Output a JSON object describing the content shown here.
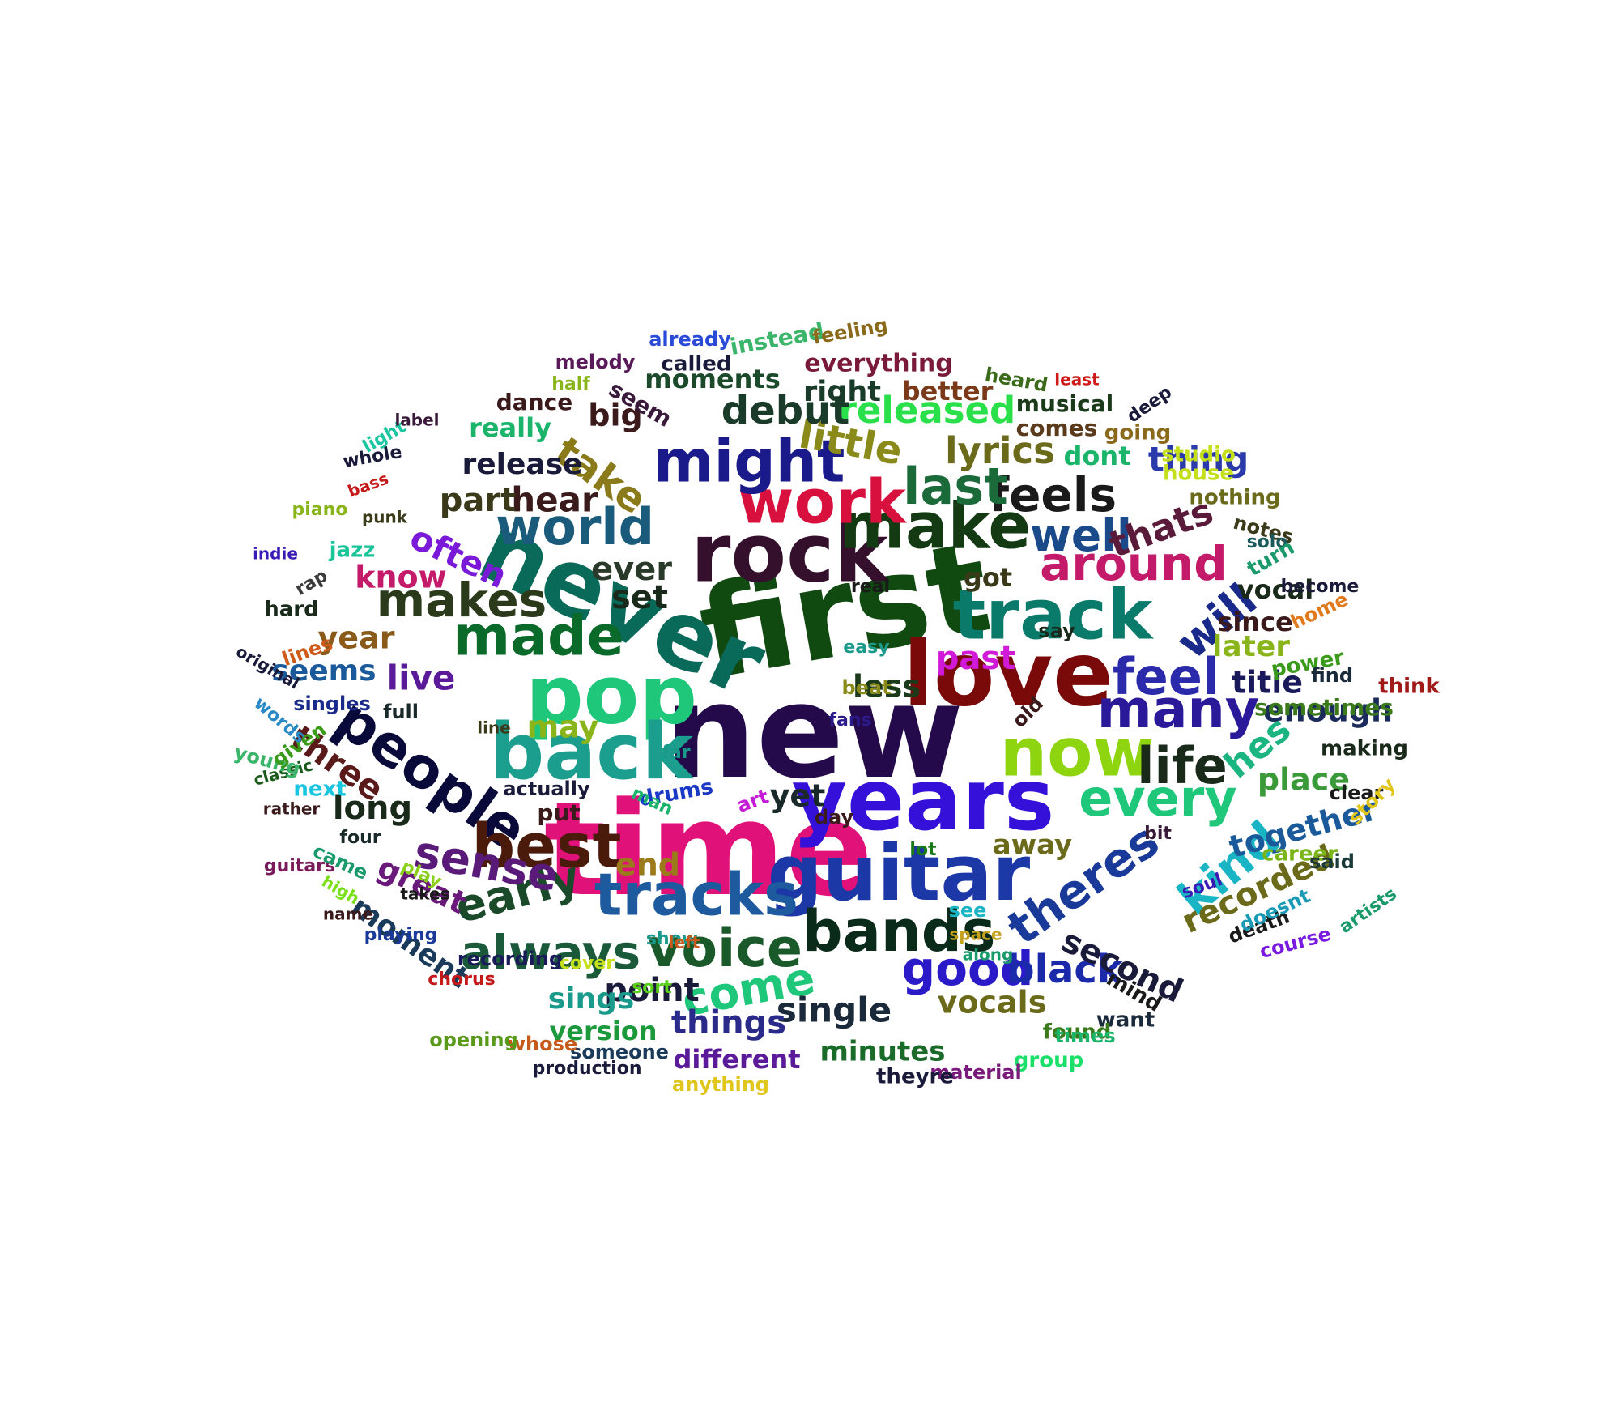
{
  "word_cloud": {
    "words": [
      {
        "text": "new",
        "color": "#240a4a",
        "rotate": 0
      },
      {
        "text": "time",
        "color": "#e1117a",
        "rotate": 0
      },
      {
        "text": "first",
        "color": "#114a10",
        "rotate": -10
      },
      {
        "text": "never",
        "color": "#0a6a5a",
        "rotate": 25
      },
      {
        "text": "years",
        "color": "#3410d8",
        "rotate": 0
      },
      {
        "text": "love",
        "color": "#7a0a0a",
        "rotate": 0
      },
      {
        "text": "rock",
        "color": "#34102c",
        "rotate": 0
      },
      {
        "text": "pop",
        "color": "#1ec77a",
        "rotate": 0
      },
      {
        "text": "back",
        "color": "#1b9e8e",
        "rotate": 0
      },
      {
        "text": "guitar",
        "color": "#1c37a6",
        "rotate": 0
      },
      {
        "text": "make",
        "color": "#143a14",
        "rotate": 0
      },
      {
        "text": "track",
        "color": "#0a7a6a",
        "rotate": 0
      },
      {
        "text": "now",
        "color": "#8ed50f",
        "rotate": 0
      },
      {
        "text": "people",
        "color": "#0a0a3a",
        "rotate": 35
      },
      {
        "text": "work",
        "color": "#d8103e",
        "rotate": 0
      },
      {
        "text": "might",
        "color": "#1a1a8a",
        "rotate": 0
      },
      {
        "text": "world",
        "color": "#1a5a7a",
        "rotate": 0
      },
      {
        "text": "made",
        "color": "#0a6a2a",
        "rotate": 0
      },
      {
        "text": "many",
        "color": "#2a1a9a",
        "rotate": 0
      },
      {
        "text": "bands",
        "color": "#0a2a1a",
        "rotate": 0
      },
      {
        "text": "tracks",
        "color": "#1d5a9e",
        "rotate": 0
      },
      {
        "text": "best",
        "color": "#4a1a0a",
        "rotate": 0
      },
      {
        "text": "voice",
        "color": "#1a5a2a",
        "rotate": 0
      },
      {
        "text": "around",
        "color": "#c41a6a",
        "rotate": 0
      },
      {
        "text": "feels",
        "color": "#1a1a1a",
        "rotate": 0
      },
      {
        "text": "last",
        "color": "#1a6a3a",
        "rotate": 0
      },
      {
        "text": "feel",
        "color": "#2a2aaa",
        "rotate": 0
      },
      {
        "text": "every",
        "color": "#1ec77a",
        "rotate": 0
      },
      {
        "text": "theres",
        "color": "#1a3a9a",
        "rotate": -35
      },
      {
        "text": "early",
        "color": "#1a4a2a",
        "rotate": -15
      },
      {
        "text": "good",
        "color": "#2a1ac8",
        "rotate": 0
      },
      {
        "text": "will",
        "color": "#1a2a8a",
        "rotate": -40
      },
      {
        "text": "kind",
        "color": "#1ab5c5",
        "rotate": -40
      },
      {
        "text": "sense",
        "color": "#5a1a7a",
        "rotate": 10
      },
      {
        "text": "makes",
        "color": "#2a3a1a",
        "rotate": 0
      },
      {
        "text": "life",
        "color": "#1a2a1a",
        "rotate": 0
      },
      {
        "text": "well",
        "color": "#1a4a8a",
        "rotate": 0
      },
      {
        "text": "always",
        "color": "#1a5a3a",
        "rotate": 0
      },
      {
        "text": "come",
        "color": "#1ec77a",
        "rotate": -10
      },
      {
        "text": "black",
        "color": "#1a2aaa",
        "rotate": 0
      },
      {
        "text": "take",
        "color": "#8a7a1a",
        "rotate": 35
      },
      {
        "text": "little",
        "color": "#8a8a1a",
        "rotate": 10
      },
      {
        "text": "lyrics",
        "color": "#6a6a1a",
        "rotate": 0
      },
      {
        "text": "released",
        "color": "#2ae04a",
        "rotate": 0
      },
      {
        "text": "debut",
        "color": "#1a3a2a",
        "rotate": 0
      },
      {
        "text": "thing",
        "color": "#2a3aaa",
        "rotate": 0
      },
      {
        "text": "thats",
        "color": "#5a1a3a",
        "rotate": -20
      },
      {
        "text": "often",
        "color": "#7a1ad8",
        "rotate": 25
      },
      {
        "text": "know",
        "color": "#c41a6a",
        "rotate": 0
      },
      {
        "text": "hear",
        "color": "#3a1a1a",
        "rotate": 0
      },
      {
        "text": "part",
        "color": "#3a3a1a",
        "rotate": 0
      },
      {
        "text": "ever",
        "color": "#2a3a2a",
        "rotate": 0
      },
      {
        "text": "set",
        "color": "#1a2a1a",
        "rotate": 0
      },
      {
        "text": "live",
        "color": "#5a1a9a",
        "rotate": 0
      },
      {
        "text": "year",
        "color": "#8a5a1a",
        "rotate": 0
      },
      {
        "text": "seems",
        "color": "#1a5a9a",
        "rotate": 0
      },
      {
        "text": "past",
        "color": "#d01ad8",
        "rotate": 0
      },
      {
        "text": "less",
        "color": "#1a3a1a",
        "rotate": 0
      },
      {
        "text": "title",
        "color": "#1a1a5a",
        "rotate": 0
      },
      {
        "text": "enough",
        "color": "#1a2a5a",
        "rotate": 0
      },
      {
        "text": "hes",
        "color": "#1ab580",
        "rotate": -40
      },
      {
        "text": "place",
        "color": "#3a9a3a",
        "rotate": 0
      },
      {
        "text": "together",
        "color": "#1a5a9a",
        "rotate": -15
      },
      {
        "text": "recorded",
        "color": "#6a6a1a",
        "rotate": -25
      },
      {
        "text": "second",
        "color": "#1a1a3a",
        "rotate": 25
      },
      {
        "text": "single",
        "color": "#1a2a3a",
        "rotate": 0
      },
      {
        "text": "things",
        "color": "#2a2a8a",
        "rotate": 0
      },
      {
        "text": "point",
        "color": "#1a1a3a",
        "rotate": 0
      },
      {
        "text": "vocals",
        "color": "#6a6a1a",
        "rotate": 0
      },
      {
        "text": "three",
        "color": "#5a1a1a",
        "rotate": 35
      },
      {
        "text": "long",
        "color": "#1a2a1a",
        "rotate": 0
      },
      {
        "text": "great",
        "color": "#6a1a7a",
        "rotate": 25
      },
      {
        "text": "moment",
        "color": "#1a3a5a",
        "rotate": 35
      },
      {
        "text": "end",
        "color": "#9a7a1a",
        "rotate": 0
      },
      {
        "text": "yet",
        "color": "#1a2a2a",
        "rotate": 0
      },
      {
        "text": "may",
        "color": "#8ab51a",
        "rotate": 0
      },
      {
        "text": "later",
        "color": "#8ab51a",
        "rotate": 0
      },
      {
        "text": "since",
        "color": "#3a1a1a",
        "rotate": 0
      },
      {
        "text": "vocal",
        "color": "#1a2a1a",
        "rotate": 0
      },
      {
        "text": "got",
        "color": "#3a3a1a",
        "rotate": 0
      },
      {
        "text": "away",
        "color": "#6a6a1a",
        "rotate": 0
      },
      {
        "text": "sings",
        "color": "#1a9a8a",
        "rotate": 0
      },
      {
        "text": "version",
        "color": "#1a9a3a",
        "rotate": 0
      },
      {
        "text": "minutes",
        "color": "#1a6a2a",
        "rotate": 0
      },
      {
        "text": "different",
        "color": "#5a1a9a",
        "rotate": 0
      },
      {
        "text": "big",
        "color": "#3a1a1a",
        "rotate": 0
      },
      {
        "text": "release",
        "color": "#1a1a3a",
        "rotate": 0
      },
      {
        "text": "really",
        "color": "#1ab56a",
        "rotate": 0
      },
      {
        "text": "right",
        "color": "#1a3a2a",
        "rotate": 0
      },
      {
        "text": "better",
        "color": "#7a3a1a",
        "rotate": 0
      },
      {
        "text": "everything",
        "color": "#7a1a3a",
        "rotate": 0
      },
      {
        "text": "moments",
        "color": "#1a4a2a",
        "rotate": 0
      },
      {
        "text": "seem",
        "color": "#3a1a3a",
        "rotate": 30
      },
      {
        "text": "dance",
        "color": "#3a1a1a",
        "rotate": 0
      },
      {
        "text": "instead",
        "color": "#3ab56a",
        "rotate": -10
      },
      {
        "text": "called",
        "color": "#1a1a3a",
        "rotate": 0
      },
      {
        "text": "melody",
        "color": "#5a1a5a",
        "rotate": 0
      },
      {
        "text": "already",
        "color": "#2a4ad8",
        "rotate": 0
      },
      {
        "text": "feeling",
        "color": "#8a6a1a",
        "rotate": -10
      },
      {
        "text": "half",
        "color": "#8ab51a",
        "rotate": 0
      },
      {
        "text": "musical",
        "color": "#1a3a1a",
        "rotate": 0
      },
      {
        "text": "comes",
        "color": "#5a3a1a",
        "rotate": 0
      },
      {
        "text": "dont",
        "color": "#1ab56a",
        "rotate": 0
      },
      {
        "text": "heard",
        "color": "#3a6a1a",
        "rotate": 10
      },
      {
        "text": "least",
        "color": "#d01a1a",
        "rotate": 0
      },
      {
        "text": "deep",
        "color": "#1a1a3a",
        "rotate": -35
      },
      {
        "text": "going",
        "color": "#8a6a1a",
        "rotate": 0
      },
      {
        "text": "studio",
        "color": "#c5e01a",
        "rotate": 0
      },
      {
        "text": "house",
        "color": "#c5e01a",
        "rotate": 0
      },
      {
        "text": "nothing",
        "color": "#6a6a1a",
        "rotate": 0
      },
      {
        "text": "notes",
        "color": "#3a3a1a",
        "rotate": 15
      },
      {
        "text": "solo",
        "color": "#1a5a5a",
        "rotate": 0
      },
      {
        "text": "turn",
        "color": "#1a9a6a",
        "rotate": -30
      },
      {
        "text": "become",
        "color": "#1a1a3a",
        "rotate": 0
      },
      {
        "text": "home",
        "color": "#e07a1a",
        "rotate": -25
      },
      {
        "text": "power",
        "color": "#3a9a1a",
        "rotate": -10
      },
      {
        "text": "find",
        "color": "#1a2a3a",
        "rotate": 0
      },
      {
        "text": "think",
        "color": "#a01a1a",
        "rotate": 0
      },
      {
        "text": "sometimes",
        "color": "#3a7a1a",
        "rotate": 0
      },
      {
        "text": "making",
        "color": "#1a2a1a",
        "rotate": 0
      },
      {
        "text": "clear",
        "color": "#1a1a1a",
        "rotate": 0
      },
      {
        "text": "story",
        "color": "#e0c51a",
        "rotate": -45
      },
      {
        "text": "career",
        "color": "#7ab51a",
        "rotate": 0
      },
      {
        "text": "said",
        "color": "#1a3a3a",
        "rotate": 0
      },
      {
        "text": "artists",
        "color": "#1a9a6a",
        "rotate": -35
      },
      {
        "text": "course",
        "color": "#7a1ae0",
        "rotate": -15
      },
      {
        "text": "death",
        "color": "#1a1a1a",
        "rotate": -20
      },
      {
        "text": "doesnt",
        "color": "#1a9ab5",
        "rotate": -25
      },
      {
        "text": "soul",
        "color": "#3a1ab5",
        "rotate": -20
      },
      {
        "text": "mind",
        "color": "#1a1a1a",
        "rotate": 30
      },
      {
        "text": "want",
        "color": "#1a2a3a",
        "rotate": 0
      },
      {
        "text": "found",
        "color": "#3a7a1a",
        "rotate": 0
      },
      {
        "text": "times",
        "color": "#1ab56a",
        "rotate": 0
      },
      {
        "text": "group",
        "color": "#1ae06a",
        "rotate": 0
      },
      {
        "text": "material",
        "color": "#7a1a7a",
        "rotate": 0
      },
      {
        "text": "theyre",
        "color": "#1a1a3a",
        "rotate": 0
      },
      {
        "text": "anything",
        "color": "#e0c51a",
        "rotate": 0
      },
      {
        "text": "production",
        "color": "#1a1a3a",
        "rotate": 0
      },
      {
        "text": "someone",
        "color": "#1a3a5a",
        "rotate": 0
      },
      {
        "text": "whose",
        "color": "#c55a1a",
        "rotate": 0
      },
      {
        "text": "opening",
        "color": "#5a9a1a",
        "rotate": 0
      },
      {
        "text": "recording",
        "color": "#1a1a5a",
        "rotate": 0
      },
      {
        "text": "playing",
        "color": "#1a3a9a",
        "rotate": 0
      },
      {
        "text": "name",
        "color": "#3a1a1a",
        "rotate": 0
      },
      {
        "text": "guitars",
        "color": "#7a1a5a",
        "rotate": 0
      },
      {
        "text": "high",
        "color": "#7ae01a",
        "rotate": 30
      },
      {
        "text": "came",
        "color": "#1a9a6a",
        "rotate": 25
      },
      {
        "text": "four",
        "color": "#1a2a2a",
        "rotate": 0
      },
      {
        "text": "rather",
        "color": "#3a1a1a",
        "rotate": 0
      },
      {
        "text": "next",
        "color": "#1ac5e0",
        "rotate": 0
      },
      {
        "text": "classic",
        "color": "#1a5a1a",
        "rotate": -15
      },
      {
        "text": "young",
        "color": "#3ab56a",
        "rotate": 15
      },
      {
        "text": "given",
        "color": "#3a9a1a",
        "rotate": -35
      },
      {
        "text": "words",
        "color": "#2a8ac5",
        "rotate": 40
      },
      {
        "text": "original",
        "color": "#1a1a3a",
        "rotate": 30
      },
      {
        "text": "lines",
        "color": "#d05a1a",
        "rotate": -20
      },
      {
        "text": "singles",
        "color": "#1a2a8a",
        "rotate": 0
      },
      {
        "text": "full",
        "color": "#1a2a2a",
        "rotate": 0
      },
      {
        "text": "line",
        "color": "#3a3a1a",
        "rotate": 0
      },
      {
        "text": "hard",
        "color": "#1a2a1a",
        "rotate": 0
      },
      {
        "text": "rap",
        "color": "#3a3a3a",
        "rotate": -30
      },
      {
        "text": "indie",
        "color": "#3a1ab5",
        "rotate": 0
      },
      {
        "text": "jazz",
        "color": "#1ac59a",
        "rotate": 0
      },
      {
        "text": "punk",
        "color": "#3a3a1a",
        "rotate": 0
      },
      {
        "text": "piano",
        "color": "#8ab51a",
        "rotate": 0
      },
      {
        "text": "bass",
        "color": "#c51a1a",
        "rotate": -20
      },
      {
        "text": "whole",
        "color": "#1a1a3a",
        "rotate": -10
      },
      {
        "text": "light",
        "color": "#1ac5a0",
        "rotate": -30
      },
      {
        "text": "label",
        "color": "#3a1a3a",
        "rotate": 0
      },
      {
        "text": "actually",
        "color": "#1a1a3a",
        "rotate": 0
      },
      {
        "text": "put",
        "color": "#3a1a1a",
        "rotate": 0
      },
      {
        "text": "drums",
        "color": "#1a3ac5",
        "rotate": -10
      },
      {
        "text": "man",
        "color": "#1ab56a",
        "rotate": 25
      },
      {
        "text": "far",
        "color": "#1a9a8a",
        "rotate": 0
      },
      {
        "text": "real",
        "color": "#1a1a1a",
        "rotate": 0
      },
      {
        "text": "easy",
        "color": "#1a9a8a",
        "rotate": 0
      },
      {
        "text": "beat",
        "color": "#8a8a1a",
        "rotate": 0
      },
      {
        "text": "old",
        "color": "#3a1a1a",
        "rotate": -45
      },
      {
        "text": "fans",
        "color": "#2a1a8a",
        "rotate": 0
      },
      {
        "text": "art",
        "color": "#c51ad8",
        "rotate": -20
      },
      {
        "text": "day",
        "color": "#3a1a1a",
        "rotate": 0
      },
      {
        "text": "lot",
        "color": "#1a7a1a",
        "rotate": 0
      },
      {
        "text": "bit",
        "color": "#3a1a3a",
        "rotate": 0
      },
      {
        "text": "say",
        "color": "#1a2a1a",
        "rotate": 0
      },
      {
        "text": "see",
        "color": "#1ab5c5",
        "rotate": 0
      },
      {
        "text": "space",
        "color": "#c5a01a",
        "rotate": 0
      },
      {
        "text": "along",
        "color": "#1a9a6a",
        "rotate": 0
      },
      {
        "text": "show",
        "color": "#1a9a8a",
        "rotate": 0
      },
      {
        "text": "left",
        "color": "#c55a1a",
        "rotate": 0
      },
      {
        "text": "cover",
        "color": "#c5e01a",
        "rotate": 0
      },
      {
        "text": "chorus",
        "color": "#c51a1a",
        "rotate": 0
      },
      {
        "text": "sort",
        "color": "#5ad01a",
        "rotate": 0
      },
      {
        "text": "play",
        "color": "#8ad01a",
        "rotate": 25
      },
      {
        "text": "takes",
        "color": "#1a1a1a",
        "rotate": 0
      }
    ]
  }
}
